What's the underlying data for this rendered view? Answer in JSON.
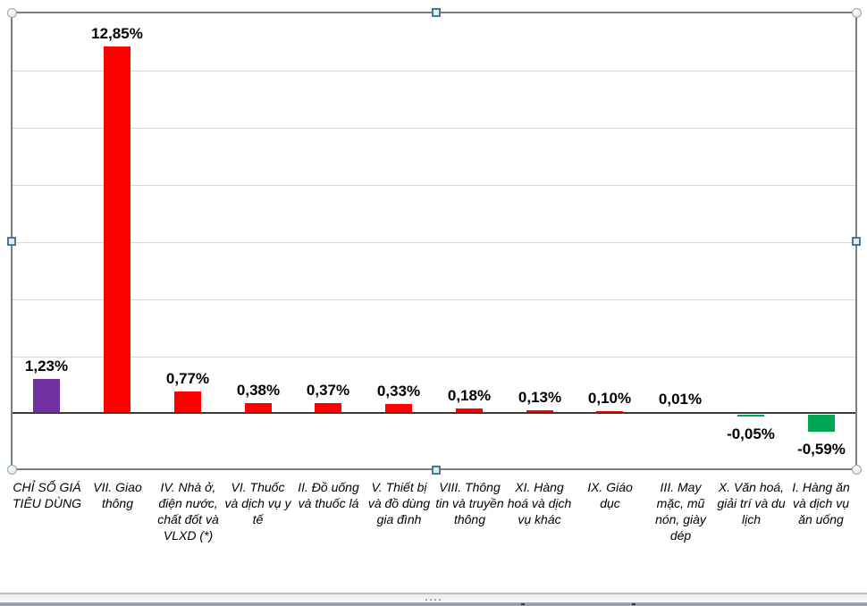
{
  "chart_data": {
    "type": "bar",
    "title": "",
    "xlabel": "",
    "ylabel": "",
    "categories": [
      "CHỈ SỐ GIÁ TIÊU DÙNG",
      "VII. Giao thông",
      "IV. Nhà ở, điện nước, chất đốt và VLXD (*)",
      "VI. Thuốc và dịch vụ y tế",
      "II. Đồ uống và thuốc lá",
      "V. Thiết bị và đồ dùng gia đình",
      "VIII. Thông tin và truyền thông",
      "XI. Hàng hoá và dịch vụ khác",
      "IX. Giáo dục",
      "III. May mặc, mũ nón, giày dép",
      "X. Văn hoá, giải trí và du lịch",
      "I. Hàng ăn và dịch vụ ăn uống"
    ],
    "values": [
      1.23,
      12.85,
      0.77,
      0.38,
      0.37,
      0.33,
      0.18,
      0.13,
      0.1,
      0.01,
      -0.05,
      -0.59
    ],
    "value_labels": [
      "1,23%",
      "12,85%",
      "0,77%",
      "0,38%",
      "0,37%",
      "0,33%",
      "0,18%",
      "0,13%",
      "0,10%",
      "0,01%",
      "-0,05%",
      "-0,59%"
    ],
    "bar_colors": [
      "#7030a0",
      "#ff0000",
      "#ff0000",
      "#ff0000",
      "#ff0000",
      "#ff0000",
      "#ff0000",
      "#ff0000",
      "#ff0000",
      "#ff0000",
      "#00a651",
      "#00a651"
    ],
    "ylim": [
      -2,
      14
    ],
    "gridline_step": 2,
    "grid": true,
    "legend": false
  },
  "colors": {
    "cpi_bar": "#7030a0",
    "positive_bar": "#ff0000",
    "negative_bar": "#00a651",
    "gridline": "#d9d9d9",
    "axis_line": "#3e3b30",
    "selection_border": "#7d7d7d"
  }
}
